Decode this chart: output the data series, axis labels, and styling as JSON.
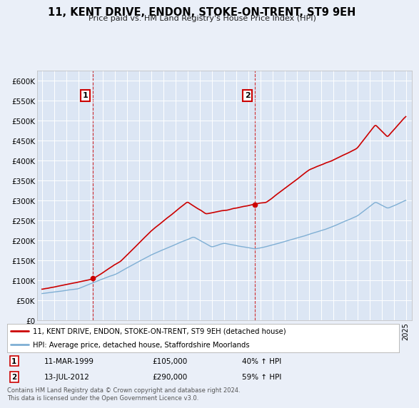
{
  "title": "11, KENT DRIVE, ENDON, STOKE-ON-TRENT, ST9 9EH",
  "subtitle": "Price paid vs. HM Land Registry's House Price Index (HPI)",
  "background_color": "#eaeff8",
  "plot_bg_color": "#dce6f4",
  "legend_line1": "11, KENT DRIVE, ENDON, STOKE-ON-TRENT, ST9 9EH (detached house)",
  "legend_line2": "HPI: Average price, detached house, Staffordshire Moorlands",
  "house_color": "#cc0000",
  "hpi_color": "#7fafd4",
  "annotation1": {
    "label": "1",
    "year": 1999.17,
    "price": 105000,
    "text_date": "11-MAR-1999",
    "text_price": "£105,000",
    "text_pct": "40% ↑ HPI"
  },
  "annotation2": {
    "label": "2",
    "year": 2012.54,
    "price": 290000,
    "text_date": "13-JUL-2012",
    "text_price": "£290,000",
    "text_pct": "59% ↑ HPI"
  },
  "footer": "Contains HM Land Registry data © Crown copyright and database right 2024.\nThis data is licensed under the Open Government Licence v3.0.",
  "ylim": [
    0,
    625000
  ],
  "yticks": [
    0,
    50000,
    100000,
    150000,
    200000,
    250000,
    300000,
    350000,
    400000,
    450000,
    500000,
    550000,
    600000
  ],
  "x_start_year": 1995,
  "x_end_year": 2025
}
